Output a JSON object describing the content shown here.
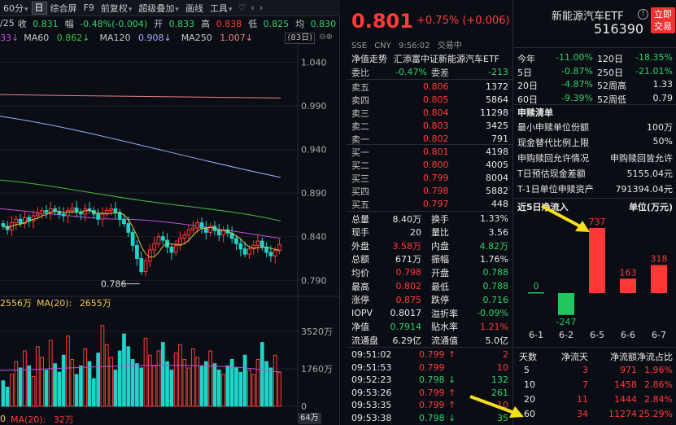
{
  "toolbar": {
    "period": "60分",
    "day": "日",
    "items": [
      "综合屏",
      "F9",
      "前复权",
      "超级叠加",
      "画线",
      "工具"
    ],
    "icons": [
      "heart-icon",
      "chevron-left-icon",
      "chevron-right-icon"
    ]
  },
  "infobar": {
    "date": "/25",
    "close_label": "收",
    "close": "0.831",
    "change_label": "幅",
    "change": "-0.48%(-0.004)",
    "open_label": "开",
    "open": "0.833",
    "high_label": "高",
    "high": "0.838",
    "low_label": "低",
    "low": "0.825",
    "avg_label": "均",
    "avg": "0.830"
  },
  "mabar": {
    "ma30": "33↓",
    "ma60_label": "MA60",
    "ma60": "0.862↓",
    "ma120_label": "MA120",
    "ma120": "0.908↓",
    "ma250_label": "MA250",
    "ma250": "1.007↓",
    "days_tag": "(83日)"
  },
  "price_axis": [
    "1.040",
    "0.990",
    "0.940",
    "0.890",
    "0.840",
    "0.790"
  ],
  "low_marker": "0.786",
  "volbar": {
    "v1": "2556万",
    "ma20_label": "MA(20):",
    "ma20": "2655万"
  },
  "vol_axis": [
    "3520万",
    "1760万",
    "0"
  ],
  "bottombar": {
    "text1": "0",
    "ma20_label": "MA(20):",
    "ma20": "32万",
    "unit": "64万"
  },
  "chart_colors": {
    "up": "#ff3b3b",
    "down": "#1fd4c8",
    "ma_pink": "#e88080",
    "ma_purple": "#c050e0",
    "ma_green": "#3fbf3f",
    "ma_blue": "#9ab0ff",
    "ma_yellow": "#e0c040"
  },
  "quote": {
    "price": "0.801",
    "change": "+0.75% (+0.006)",
    "exchange": "SSE",
    "currency": "CNY",
    "time": "9:56:02",
    "status": "交易中",
    "index_label": "净值走势",
    "index_name": "汇添富中证新能源汽车ETF",
    "weibi_label": "委比",
    "weibi": "-0.47%",
    "weicha_label": "委差",
    "weicha": "-213"
  },
  "asks": [
    {
      "label": "卖五",
      "price": "0.806",
      "vol": "1372"
    },
    {
      "label": "卖四",
      "price": "0.805",
      "vol": "5864"
    },
    {
      "label": "卖三",
      "price": "0.804",
      "vol": "11298"
    },
    {
      "label": "卖二",
      "price": "0.803",
      "vol": "3425"
    },
    {
      "label": "卖一",
      "price": "0.802",
      "vol": "791"
    }
  ],
  "bids": [
    {
      "label": "买一",
      "price": "0.801",
      "vol": "4198"
    },
    {
      "label": "买二",
      "price": "0.800",
      "vol": "4005"
    },
    {
      "label": "买三",
      "price": "0.799",
      "vol": "8004"
    },
    {
      "label": "买四",
      "price": "0.798",
      "vol": "5882"
    },
    {
      "label": "买五",
      "price": "0.797",
      "vol": "448"
    }
  ],
  "stats": [
    {
      "l1": "总量",
      "v1": "8.40万",
      "c1": "white",
      "l2": "换手",
      "v2": "1.33%",
      "c2": "white"
    },
    {
      "l1": "现手",
      "v1": "20",
      "c1": "white",
      "l2": "量比",
      "v2": "3.56",
      "c2": "white"
    },
    {
      "l1": "外盘",
      "v1": "3.58万",
      "c1": "red",
      "l2": "内盘",
      "v2": "4.82万",
      "c2": "green"
    },
    {
      "l1": "总额",
      "v1": "671万",
      "c1": "white",
      "l2": "振幅",
      "v2": "1.76%",
      "c2": "white"
    },
    {
      "l1": "均价",
      "v1": "0.798",
      "c1": "red",
      "l2": "开盘",
      "v2": "0.788",
      "c2": "green"
    },
    {
      "l1": "最高",
      "v1": "0.802",
      "c1": "red",
      "l2": "最低",
      "v2": "0.788",
      "c2": "green"
    },
    {
      "l1": "涨停",
      "v1": "0.875",
      "c1": "red",
      "l2": "跌停",
      "v2": "0.716",
      "c2": "green"
    },
    {
      "l1": "IOPV",
      "v1": "0.8017",
      "c1": "white",
      "l2": "溢折率",
      "v2": "-0.09%",
      "c2": "green"
    },
    {
      "l1": "净值",
      "v1": "0.7914",
      "c1": "green",
      "l2": "贴水率",
      "v2": "1.21%",
      "c2": "red"
    },
    {
      "l1": "流通盘",
      "v1": "6.29亿",
      "c1": "white",
      "l2": "流通值",
      "v2": "5.0亿",
      "c2": "white"
    }
  ],
  "ticks": [
    {
      "time": "09:51:02",
      "price": "0.799",
      "dir": "↑",
      "dc": "red",
      "vol": "2",
      "vc": "red"
    },
    {
      "time": "09:51:53",
      "price": "0.799",
      "dir": "",
      "dc": "red",
      "vol": "10",
      "vc": "red"
    },
    {
      "time": "09:52:23",
      "price": "0.798",
      "dir": "↓",
      "dc": "green",
      "vol": "132",
      "vc": "green"
    },
    {
      "time": "09:53:26",
      "price": "0.799",
      "dir": "↑",
      "dc": "red",
      "vol": "261",
      "vc": "green"
    },
    {
      "time": "09:53:35",
      "price": "0.799",
      "dir": "↑",
      "dc": "red",
      "vol": "10",
      "vc": "red"
    },
    {
      "time": "09:53:38",
      "price": "0.798",
      "dir": "↓",
      "dc": "green",
      "vol": "35",
      "vc": "green"
    }
  ],
  "fund": {
    "name": "新能源汽车ETF",
    "code": "516390",
    "trade_button": [
      "立即",
      "交易"
    ]
  },
  "performance": [
    {
      "l1": "今年",
      "v1": "-11.00%",
      "c1": "green",
      "l2": "120日",
      "v2": "-18.35%",
      "c2": "green"
    },
    {
      "l1": "5日",
      "v1": "-0.87%",
      "c1": "green",
      "l2": "250日",
      "v2": "-21.01%",
      "c2": "green"
    },
    {
      "l1": "20日",
      "v1": "-4.87%",
      "c1": "green",
      "l2": "52周高",
      "v2": "1.33",
      "c2": "white"
    },
    {
      "l1": "60日",
      "v1": "-9.39%",
      "c1": "green",
      "l2": "52周低",
      "v2": "0.79",
      "c2": "white"
    }
  ],
  "subscription": {
    "title": "申赎清单",
    "rows": [
      {
        "label": "最小申赎单位份额",
        "value": "100万"
      },
      {
        "label": "现金替代比例上限",
        "value": "50%"
      },
      {
        "label": "申购赎回允许情况",
        "value": "申购赎回皆允许"
      },
      {
        "label": "T日预估现金差额",
        "value": "5155.04元"
      },
      {
        "label": "T-1日单位申赎资产",
        "value": "791394.04元"
      }
    ]
  },
  "flow": {
    "title": "近5日净流入",
    "unit": "单位(万元)"
  },
  "chart_data": {
    "type": "bar",
    "title": "近5日净流入",
    "ylabel": "单位(万元)",
    "categories": [
      "6-1",
      "6-2",
      "6-5",
      "6-6",
      "6-7"
    ],
    "values": [
      0,
      -247,
      737,
      163,
      318
    ]
  },
  "flow_table": {
    "headers": [
      "天数",
      "净流天",
      "净流额",
      "净流占比"
    ],
    "rows": [
      {
        "days": "5",
        "net_days": "3",
        "amount": "971",
        "pct": "1.96%"
      },
      {
        "days": "10",
        "net_days": "7",
        "amount": "1458",
        "pct": "2.86%"
      },
      {
        "days": "20",
        "net_days": "11",
        "amount": "1444",
        "pct": "2.84%"
      },
      {
        "days": "60",
        "net_days": "34",
        "amount": "11274",
        "pct": "25.29%"
      }
    ]
  }
}
